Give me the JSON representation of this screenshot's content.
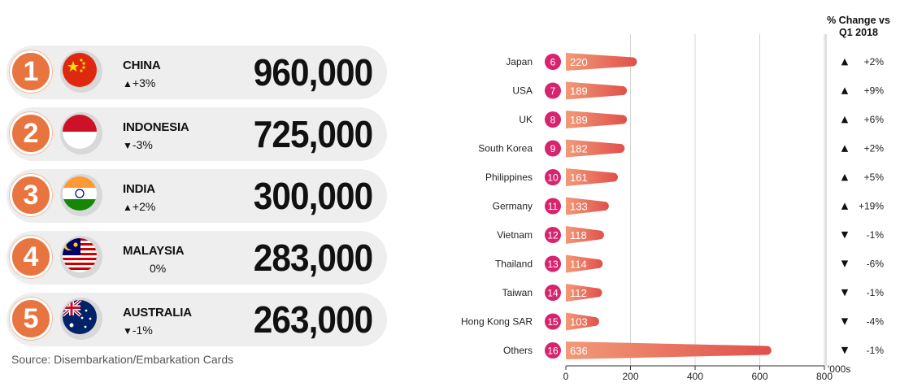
{
  "ranking": [
    {
      "rank": "1",
      "country": "CHINA",
      "change_dir": "up",
      "change": "+3%",
      "value": "960,000",
      "flag": "china-flag"
    },
    {
      "rank": "2",
      "country": "INDONESIA",
      "change_dir": "down",
      "change": "-3%",
      "value": "725,000",
      "flag": "indonesia-flag"
    },
    {
      "rank": "3",
      "country": "INDIA",
      "change_dir": "up",
      "change": "+2%",
      "value": "300,000",
      "flag": "india-flag"
    },
    {
      "rank": "4",
      "country": "MALAYSIA",
      "change_dir": "none",
      "change": "0%",
      "value": "283,000",
      "flag": "malaysia-flag"
    },
    {
      "rank": "5",
      "country": "AUSTRALIA",
      "change_dir": "down",
      "change": "-1%",
      "value": "263,000",
      "flag": "australia-flag"
    }
  ],
  "source": "Source: Disembarkation/Embarkation Cards",
  "pct_header": [
    "% Change vs",
    "Q1 2018"
  ],
  "chart_data": {
    "type": "bar",
    "orientation": "horizontal",
    "categories": [
      "Japan",
      "USA",
      "UK",
      "South Korea",
      "Philippines",
      "Germany",
      "Vietnam",
      "Thailand",
      "Taiwan",
      "Hong Kong SAR",
      "Others"
    ],
    "ranks": [
      "6",
      "7",
      "8",
      "9",
      "10",
      "11",
      "12",
      "13",
      "14",
      "15",
      "16"
    ],
    "values": [
      220,
      189,
      189,
      182,
      161,
      133,
      118,
      114,
      112,
      103,
      636
    ],
    "value_labels": [
      "220",
      "189",
      "189",
      "182",
      "161",
      "133",
      "118",
      "114",
      "112",
      "103",
      "636"
    ],
    "pct_change": [
      "+2%",
      "+9%",
      "+6%",
      "+2%",
      "+5%",
      "+19%",
      "-1%",
      "-6%",
      "-1%",
      "-4%",
      "-1%"
    ],
    "pct_dir": [
      "up",
      "up",
      "up",
      "up",
      "up",
      "up",
      "down",
      "down",
      "down",
      "down",
      "down"
    ],
    "xlim": [
      0,
      800
    ],
    "xticks": [
      0,
      200,
      400,
      600,
      800
    ],
    "xunit": "'000s",
    "grid": true,
    "colors": {
      "bar_start": "#f19a78",
      "bar_end": "#e0504a",
      "badge": "#d6246e",
      "accent": "#e8743f"
    }
  }
}
